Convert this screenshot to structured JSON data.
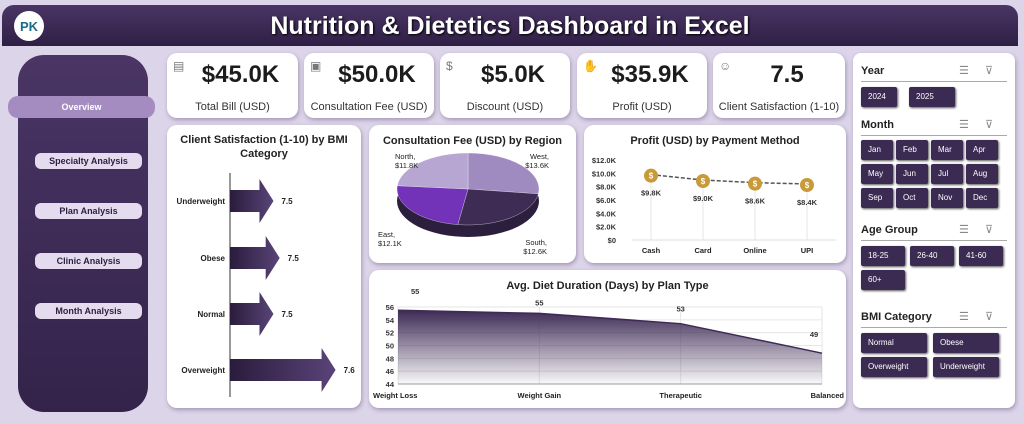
{
  "header": {
    "title": "Nutrition & Dietetics Dashboard in Excel",
    "logo_text": "PK"
  },
  "nav": {
    "items": [
      {
        "label": "Overview",
        "active": true
      },
      {
        "label": "Specialty Analysis"
      },
      {
        "label": "Plan Analysis"
      },
      {
        "label": "Clinic Analysis"
      },
      {
        "label": "Month Analysis"
      }
    ]
  },
  "kpis": [
    {
      "value": "$45.0K",
      "label": "Total Bill (USD)",
      "icon": "receipt-icon"
    },
    {
      "value": "$50.0K",
      "label": "Consultation Fee (USD)",
      "icon": "clipboard-icon"
    },
    {
      "value": "$5.0K",
      "label": "Discount (USD)",
      "icon": "money-bag-icon"
    },
    {
      "value": "$35.9K",
      "label": "Profit (USD)",
      "icon": "hand-money-icon"
    },
    {
      "value": "7.5",
      "label": "Client Satisfaction (1-10)",
      "icon": "people-icon"
    }
  ],
  "slicers": {
    "year": {
      "title": "Year",
      "options": [
        "2024",
        "2025"
      ]
    },
    "month": {
      "title": "Month",
      "options": [
        "Jan",
        "Feb",
        "Mar",
        "Apr",
        "May",
        "Jun",
        "Jul",
        "Aug",
        "Sep",
        "Oct",
        "Nov",
        "Dec"
      ]
    },
    "age": {
      "title": "Age Group",
      "options": [
        "18-25",
        "26-40",
        "41-60",
        "60+"
      ]
    },
    "bmi": {
      "title": "BMI Category",
      "options": [
        "Normal",
        "Obese",
        "Overweight",
        "Underweight"
      ]
    }
  },
  "colors": {
    "primary": "#3b2a52",
    "accent": "#7a3fc0",
    "background": "#dcd4e8"
  },
  "chart_data": [
    {
      "type": "bar",
      "orientation": "horizontal",
      "title": "Client Satisfaction (1-10) by BMI Category",
      "categories": [
        "Underweight",
        "Obese",
        "Normal",
        "Overweight"
      ],
      "values": [
        7.5,
        7.51,
        7.5,
        7.6
      ],
      "data_labels": [
        "7.5",
        "7.5",
        "7.5",
        "7.6"
      ],
      "xlim": [
        7.43,
        7.62
      ]
    },
    {
      "type": "pie",
      "title": "Consultation Fee (USD) by Region",
      "categories": [
        "West",
        "South",
        "East",
        "North"
      ],
      "values": [
        13.6,
        12.6,
        12.1,
        11.8
      ],
      "data_labels": [
        "West, $13.6K",
        "South, $12.6K",
        "East, $12.1K",
        "North, $11.8K"
      ],
      "colors": [
        "#9f8bbf",
        "#3e2c55",
        "#7233b8",
        "#b7a6d1"
      ]
    },
    {
      "type": "line",
      "title": "Profit (USD) by Payment Method",
      "categories": [
        "Cash",
        "Card",
        "Online",
        "UPI"
      ],
      "values": [
        9.8,
        9.0,
        8.6,
        8.4
      ],
      "data_labels": [
        "$9.8K",
        "$9.0K",
        "$8.6K",
        "$8.4K"
      ],
      "ylim": [
        0,
        12
      ],
      "yticks": [
        "$0",
        "$2.0K",
        "$4.0K",
        "$6.0K",
        "$8.0K",
        "$10.0K",
        "$12.0K"
      ],
      "unit": "K USD"
    },
    {
      "type": "area",
      "title": "Avg. Diet Duration (Days) by Plan Type",
      "categories": [
        "Weight Loss",
        "Weight Gain",
        "Therapeutic",
        "Balanced"
      ],
      "values": [
        55.5,
        55.0,
        53.4,
        48.8
      ],
      "data_labels": [
        "55",
        "55",
        "53",
        "49"
      ],
      "ylim": [
        44,
        56
      ],
      "yticks": [
        "44",
        "46",
        "48",
        "50",
        "52",
        "54",
        "56"
      ]
    }
  ]
}
